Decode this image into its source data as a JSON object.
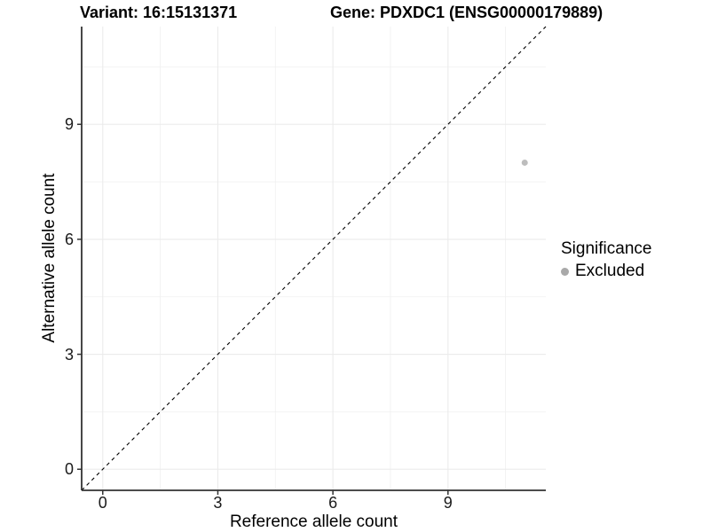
{
  "titles": {
    "variant": "Variant: 16:15131371",
    "gene": "Gene: PDXDC1 (ENSG00000179889)"
  },
  "axes": {
    "x_label": "Reference allele count",
    "y_label": "Alternative allele count"
  },
  "legend": {
    "title": "Significance",
    "items": [
      {
        "label": "Excluded",
        "color": "#a9a9a9"
      }
    ]
  },
  "colors": {
    "background": "#ffffff",
    "grid_major": "#ebebeb",
    "grid_minor": "#f0f0f0",
    "axis_line": "#333333",
    "tick_mark": "#333333",
    "reference_line": "#000000",
    "point": "#bdbdbd"
  },
  "chart_data": {
    "type": "scatter",
    "title": "Variant: 16:15131371  Gene: PDXDC1 (ENSG00000179889)",
    "xlabel": "Reference allele count",
    "ylabel": "Alternative allele count",
    "xlim": [
      -0.55,
      11.55
    ],
    "ylim": [
      -0.55,
      11.55
    ],
    "x_ticks": [
      0,
      3,
      6,
      9
    ],
    "y_ticks": [
      0,
      3,
      6,
      9
    ],
    "x_minor_ticks": [
      1.5,
      4.5,
      7.5,
      10.5
    ],
    "y_minor_ticks": [
      1.5,
      4.5,
      7.5,
      10.5
    ],
    "grid": true,
    "legend_position": "right",
    "series": [
      {
        "name": "Excluded",
        "color": "#bdbdbd",
        "points": [
          {
            "x": 11,
            "y": 8
          }
        ]
      }
    ],
    "reference_line": {
      "label": "identity",
      "slope": 1,
      "intercept": 0,
      "style": "dashed",
      "color": "#000000"
    }
  }
}
